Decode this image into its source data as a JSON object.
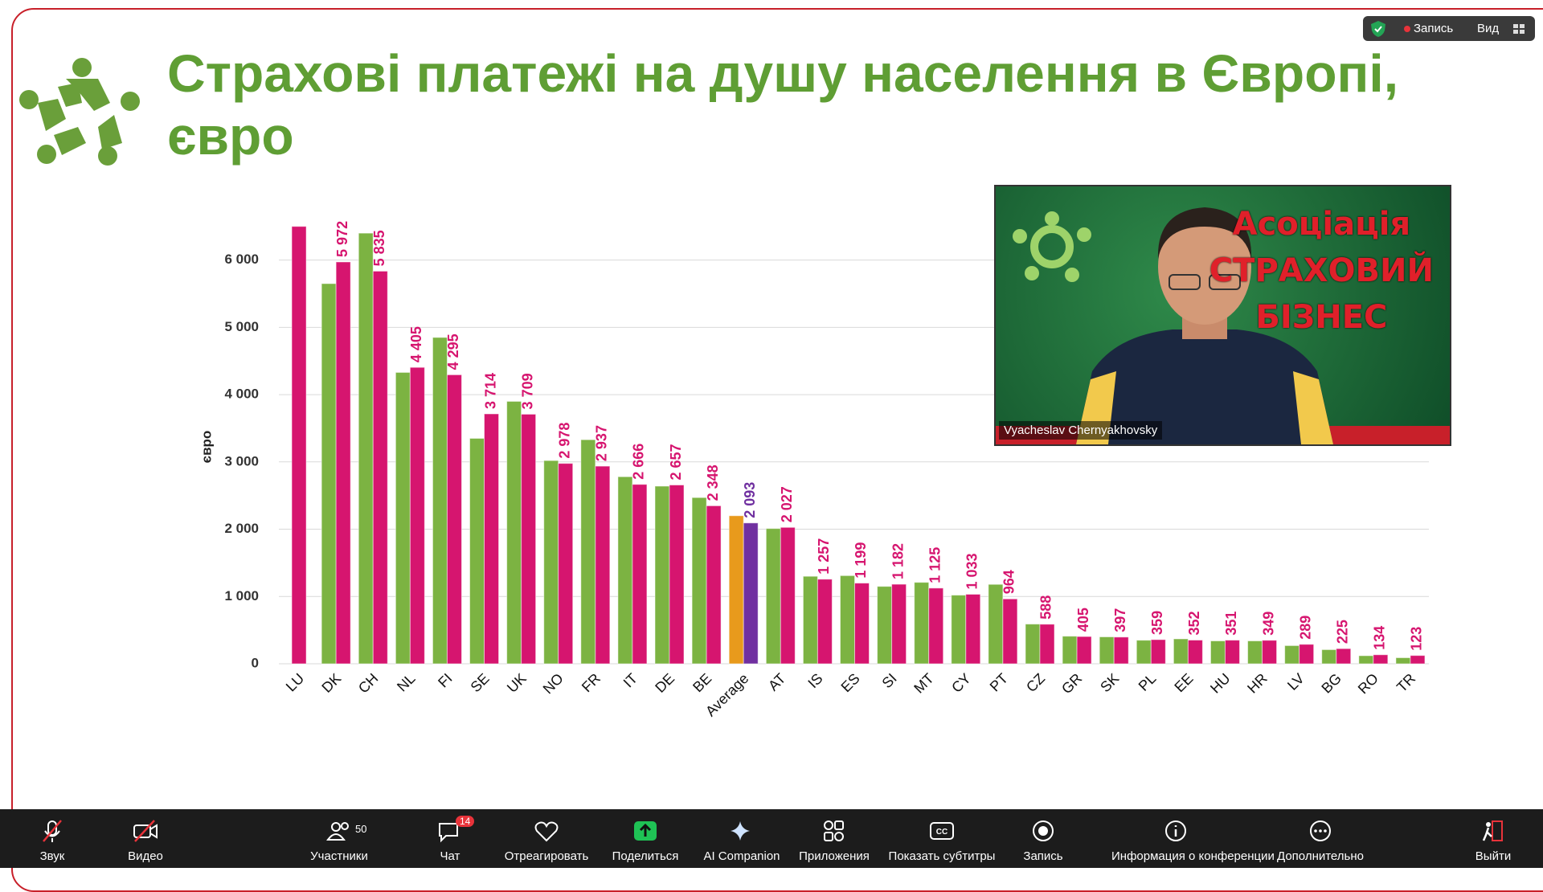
{
  "slide": {
    "title_line1": "Страхові платежі на душу населення в Європі,",
    "title_line2": "євро"
  },
  "chart_data": {
    "type": "bar",
    "y_label": "євро",
    "categories": [
      "LU",
      "DK",
      "CH",
      "NL",
      "FI",
      "SE",
      "UK",
      "NO",
      "FR",
      "IT",
      "DE",
      "BE",
      "Average",
      "AT",
      "IS",
      "ES",
      "SI",
      "MT",
      "CY",
      "PT",
      "CZ",
      "GR",
      "SK",
      "PL",
      "EE",
      "HU",
      "HR",
      "LV",
      "BG",
      "RO",
      "TR"
    ],
    "series": [
      {
        "color": "#7cb342",
        "highlight_color": "#e89a1c",
        "values": [
          null,
          5650,
          6400,
          4330,
          4850,
          3350,
          3900,
          3020,
          3330,
          2780,
          2640,
          2470,
          2200,
          2010,
          1300,
          1310,
          1150,
          1210,
          1020,
          1180,
          590,
          410,
          400,
          350,
          370,
          340,
          340,
          270,
          210,
          120,
          90
        ]
      },
      {
        "color": "#d6156f",
        "highlight_color": "#7030a0",
        "values": [
          6500,
          5972,
          5835,
          4405,
          4295,
          3714,
          3709,
          2978,
          2937,
          2666,
          2657,
          2348,
          2093,
          2027,
          1257,
          1199,
          1182,
          1125,
          1033,
          964,
          588,
          405,
          397,
          359,
          352,
          351,
          349,
          289,
          225,
          134,
          123
        ],
        "value_labels": [
          null,
          "5 972",
          "5 835",
          "4 405",
          "4 295",
          "3 714",
          "3 709",
          "2 978",
          "2 937",
          "2 666",
          "2 657",
          "2 348",
          "2 093",
          "2 027",
          "1 257",
          "1 199",
          "1 182",
          "1 125",
          "1 033",
          "964",
          "588",
          "405",
          "397",
          "359",
          "352",
          "351",
          "349",
          "289",
          "225",
          "134",
          "123"
        ]
      }
    ],
    "highlight_category": 12,
    "ylim": [
      0,
      6700
    ],
    "yticks": [
      0,
      {
        "value": 1000,
        "label": "1 000"
      },
      {
        "value": 2000,
        "label": "2 000"
      },
      {
        "value": 3000,
        "label": "3 000"
      },
      {
        "value": 4000,
        "label": "4 000"
      },
      {
        "value": 5000,
        "label": "5 000"
      },
      {
        "value": 6000,
        "label": "6 000"
      }
    ],
    "grid": true
  },
  "video": {
    "brand_line1": "Асоціація",
    "brand_line2": "СТРАХОВИЙ",
    "brand_line3": "БІЗНЕС",
    "name": "Vyacheslav Chernyakhovsky"
  },
  "status": {
    "recording": "Запись",
    "view": "Вид"
  },
  "toolbar": {
    "audio": "Звук",
    "video": "Видео",
    "participants": "Участники",
    "participants_count": "50",
    "chat": "Чат",
    "chat_badge": "14",
    "react": "Отреагировать",
    "share": "Поделиться",
    "ai": "AI Companion",
    "apps": "Приложения",
    "captions": "Показать субтитры",
    "record": "Запись",
    "info": "Информация о конференции",
    "more": "Дополнительно",
    "leave": "Выйти"
  }
}
